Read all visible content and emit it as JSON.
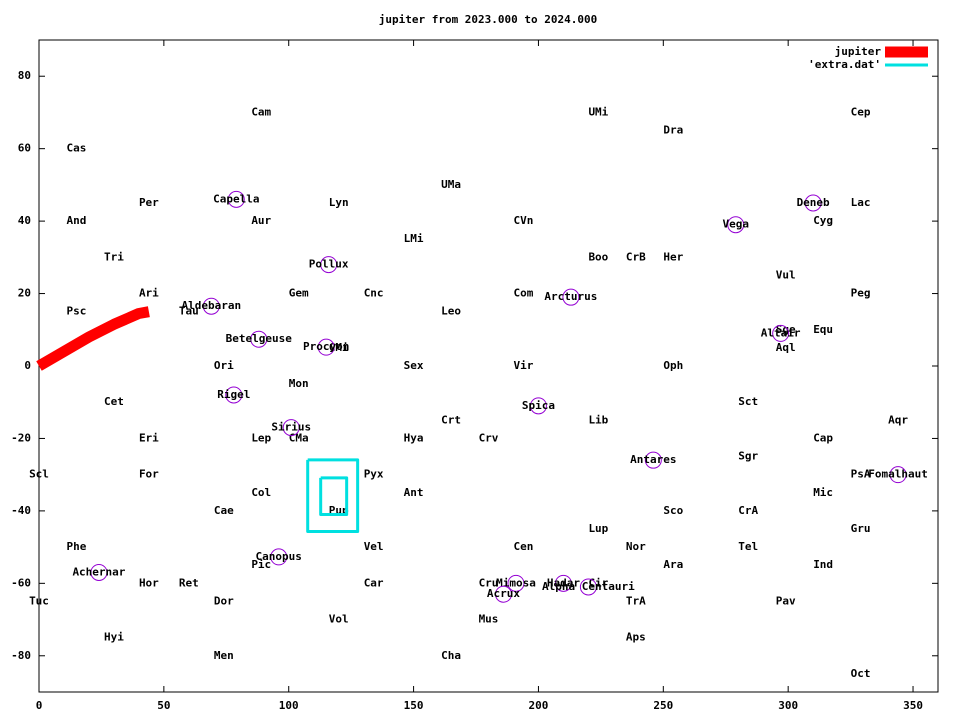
{
  "chart_data": {
    "type": "sky",
    "title": "jupiter from 2023.000 to 2024.000",
    "xlim": [
      0,
      360
    ],
    "ylim": [
      -90,
      90
    ],
    "xticks": [
      0,
      50,
      100,
      150,
      200,
      250,
      300,
      350
    ],
    "yticks": [
      -80,
      -60,
      -40,
      -20,
      0,
      20,
      40,
      60,
      80
    ],
    "legend": "top-right",
    "series": [
      {
        "name": "jupiter",
        "color": "#ff0000",
        "x": [
          0,
          10,
          20,
          30,
          40,
          44
        ],
        "y": [
          0,
          4,
          8,
          11.5,
          14.5,
          15
        ]
      },
      {
        "name": "'extra.dat'",
        "color": "#00e0e0",
        "x": [
          107.6,
          127.6,
          127.6,
          107.6,
          107.6,
          null,
          112.8,
          123.2,
          123.2,
          112.8,
          112.8
        ],
        "y": [
          -25.9,
          -25.9,
          -45.7,
          -45.7,
          -25.9,
          null,
          -30.9,
          -30.9,
          -41,
          -41,
          -30.9
        ]
      }
    ],
    "constellations": {
      "text": [
        "Cam",
        "UMi",
        "Cep",
        "Dra",
        "Cas",
        "UMa",
        "Per",
        "Lyn",
        "Lac",
        "And",
        "Aur",
        "CVn",
        "Cyg",
        "LMi",
        "Tri",
        "Boo",
        "CrB",
        "Her",
        "Vul",
        "Ari",
        "Gem",
        "Cnc",
        "Com",
        "Peg",
        "Psc",
        "Tau",
        "Leo",
        "Sge",
        "Equ",
        "Aql",
        "CMi",
        "Ori",
        "Sex",
        "Vir",
        "Oph",
        "Mon",
        "Cet",
        "Sct",
        "Crt",
        "Lib",
        "Aqr",
        "Eri",
        "Lep",
        "CMa",
        "Hya",
        "Crv",
        "Cap",
        "Sgr",
        "Scl",
        "For",
        "Pyx",
        "PsA",
        "Col",
        "Ant",
        "Mic",
        "Cae",
        "Pup",
        "Sco",
        "CrA",
        "Lup",
        "Gru",
        "Phe",
        "Vel",
        "Cen",
        "Nor",
        "Tel",
        "Pic",
        "Ara",
        "Ind",
        "Hor",
        "Ret",
        "Car",
        "Cru",
        "Cir",
        "Tuc",
        "Dor",
        "TrA",
        "Pav",
        "Vol",
        "Mus",
        "Hyi",
        "Aps",
        "Men",
        "Cha",
        "Oct"
      ],
      "x": [
        89,
        224,
        329,
        254,
        15,
        165,
        44,
        120,
        329,
        15,
        89,
        194,
        314,
        150,
        30,
        224,
        239,
        254,
        299,
        44,
        104,
        134,
        194,
        329,
        15,
        60,
        165,
        299,
        314,
        299,
        120,
        74,
        150,
        194,
        254,
        104,
        30,
        284,
        165,
        224,
        344,
        44,
        89,
        104,
        150,
        180,
        314,
        284,
        0,
        44,
        134,
        329,
        89,
        150,
        314,
        74,
        120,
        254,
        284,
        224,
        329,
        15,
        134,
        194,
        239,
        284,
        89,
        254,
        314,
        44,
        60,
        134,
        180,
        224,
        0,
        74,
        239,
        299,
        120,
        180,
        30,
        239,
        74,
        165,
        329
      ],
      "y": [
        70,
        70,
        70,
        65,
        60,
        50,
        45,
        45,
        45,
        40,
        40,
        40,
        40,
        35,
        30,
        30,
        30,
        30,
        25,
        20,
        20,
        20,
        20,
        20,
        15,
        15,
        15,
        10,
        10,
        5,
        5,
        0,
        0,
        0,
        0,
        -5,
        -10,
        -10,
        -15,
        -15,
        -15,
        -20,
        -20,
        -20,
        -20,
        -20,
        -20,
        -25,
        -30,
        -30,
        -30,
        -30,
        -35,
        -35,
        -35,
        -40,
        -40,
        -40,
        -40,
        -45,
        -45,
        -50,
        -50,
        -50,
        -50,
        -50,
        -55,
        -55,
        -55,
        -60,
        -60,
        -60,
        -60,
        -60,
        -65,
        -65,
        -65,
        -65,
        -70,
        -70,
        -75,
        -75,
        -80,
        -80,
        -85
      ]
    },
    "stars": {
      "text": [
        "Capella",
        "Deneb",
        "Vega",
        "Pollux",
        "Arcturus",
        "Aldebaran",
        "Altair",
        "Betelgeuse",
        "Procyon",
        "Rigel",
        "Spica",
        "Sirius",
        "Antares",
        "Fomalhaut",
        "Canopus",
        "Achernar",
        "Mimosa",
        "Hadar",
        "Alpha Centauri",
        "Acrux"
      ],
      "x": [
        79,
        310,
        279,
        116,
        213,
        69,
        297,
        88,
        115,
        78,
        200,
        101,
        246,
        344,
        96,
        24,
        191,
        210,
        220,
        186
      ],
      "y": [
        46,
        45,
        39,
        28,
        19,
        16.5,
        9,
        7.4,
        5.2,
        -8,
        -11,
        -17,
        -26,
        -30,
        -52.7,
        -57,
        -60,
        -60,
        -61,
        -63
      ],
      "color": "#9400d3"
    }
  }
}
